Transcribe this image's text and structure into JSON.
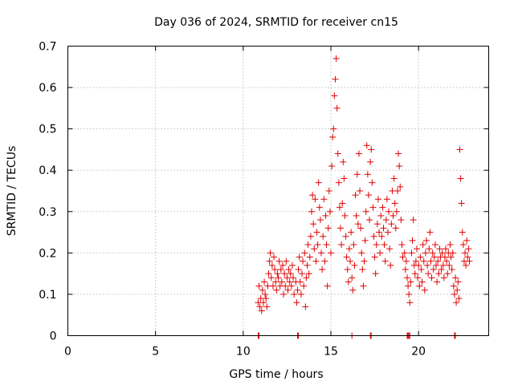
{
  "chart_data": {
    "type": "scatter",
    "title": "Day 036 of 2024, SRMTID for receiver cn15",
    "xlabel": "GPS time / hours",
    "ylabel": "SRMTID / TECUs",
    "xlim": [
      0,
      24
    ],
    "ylim": [
      0,
      0.7
    ],
    "x_ticks": [
      0,
      5,
      10,
      15,
      20
    ],
    "x_tick_labels": [
      "0",
      "5",
      "10",
      "15",
      "20"
    ],
    "y_ticks": [
      0,
      0.1,
      0.2,
      0.3,
      0.4,
      0.5,
      0.6,
      0.7
    ],
    "y_tick_labels": [
      "0",
      "0.1",
      "0.2",
      "0.3",
      "0.4",
      "0.5",
      "0.6",
      "0.7"
    ],
    "grid": true,
    "marker": "plus",
    "colors": {
      "series": "#e00000"
    },
    "series": [
      {
        "name": "SRMTID",
        "points": [
          [
            10.85,
            0.08
          ],
          [
            10.9,
            0.12
          ],
          [
            10.95,
            0.07
          ],
          [
            11.0,
            0.09
          ],
          [
            11.05,
            0.06
          ],
          [
            11.1,
            0.11
          ],
          [
            11.15,
            0.08
          ],
          [
            11.2,
            0.13
          ],
          [
            11.25,
            0.1
          ],
          [
            11.3,
            0.09
          ],
          [
            11.35,
            0.07
          ],
          [
            11.4,
            0.12
          ],
          [
            11.45,
            0.15
          ],
          [
            11.5,
            0.18
          ],
          [
            11.55,
            0.2
          ],
          [
            11.6,
            0.14
          ],
          [
            11.65,
            0.17
          ],
          [
            11.7,
            0.12
          ],
          [
            11.75,
            0.19
          ],
          [
            11.8,
            0.16
          ],
          [
            11.85,
            0.13
          ],
          [
            11.9,
            0.11
          ],
          [
            11.95,
            0.15
          ],
          [
            12.0,
            0.14
          ],
          [
            12.05,
            0.18
          ],
          [
            12.1,
            0.12
          ],
          [
            12.15,
            0.16
          ],
          [
            12.2,
            0.13
          ],
          [
            12.25,
            0.17
          ],
          [
            12.3,
            0.1
          ],
          [
            12.35,
            0.15
          ],
          [
            12.4,
            0.12
          ],
          [
            12.45,
            0.18
          ],
          [
            12.5,
            0.14
          ],
          [
            12.55,
            0.11
          ],
          [
            12.6,
            0.16
          ],
          [
            12.65,
            0.13
          ],
          [
            12.7,
            0.15
          ],
          [
            12.75,
            0.12
          ],
          [
            12.8,
            0.17
          ],
          [
            12.85,
            0.14
          ],
          [
            12.9,
            0.1
          ],
          [
            13.0,
            0.13
          ],
          [
            13.05,
            0.08
          ],
          [
            13.1,
            0.11
          ],
          [
            13.15,
            0.16
          ],
          [
            13.2,
            0.19
          ],
          [
            13.25,
            0.13
          ],
          [
            13.3,
            0.1
          ],
          [
            13.35,
            0.15
          ],
          [
            13.4,
            0.18
          ],
          [
            13.45,
            0.12
          ],
          [
            13.5,
            0.2
          ],
          [
            13.55,
            0.07
          ],
          [
            13.6,
            0.14
          ],
          [
            13.65,
            0.17
          ],
          [
            13.7,
            0.22
          ],
          [
            13.75,
            0.15
          ],
          [
            13.8,
            0.19
          ],
          [
            13.85,
            0.24
          ],
          [
            13.9,
            0.3
          ],
          [
            13.95,
            0.34
          ],
          [
            14.0,
            0.27
          ],
          [
            14.05,
            0.21
          ],
          [
            14.1,
            0.33
          ],
          [
            14.15,
            0.18
          ],
          [
            14.2,
            0.25
          ],
          [
            14.25,
            0.22
          ],
          [
            14.3,
            0.37
          ],
          [
            14.35,
            0.31
          ],
          [
            14.4,
            0.28
          ],
          [
            14.45,
            0.2
          ],
          [
            14.5,
            0.16
          ],
          [
            14.55,
            0.24
          ],
          [
            14.6,
            0.33
          ],
          [
            14.65,
            0.18
          ],
          [
            14.7,
            0.29
          ],
          [
            14.75,
            0.22
          ],
          [
            14.8,
            0.12
          ],
          [
            14.85,
            0.26
          ],
          [
            14.9,
            0.35
          ],
          [
            14.95,
            0.3
          ],
          [
            15.0,
            0.2
          ],
          [
            15.05,
            0.41
          ],
          [
            15.1,
            0.48
          ],
          [
            15.15,
            0.5
          ],
          [
            15.2,
            0.58
          ],
          [
            15.25,
            0.62
          ],
          [
            15.3,
            0.67
          ],
          [
            15.35,
            0.55
          ],
          [
            15.4,
            0.44
          ],
          [
            15.45,
            0.37
          ],
          [
            15.5,
            0.31
          ],
          [
            15.55,
            0.26
          ],
          [
            15.6,
            0.22
          ],
          [
            15.65,
            0.32
          ],
          [
            15.7,
            0.42
          ],
          [
            15.75,
            0.38
          ],
          [
            15.8,
            0.29
          ],
          [
            15.85,
            0.24
          ],
          [
            15.9,
            0.19
          ],
          [
            15.95,
            0.16
          ],
          [
            16.0,
            0.13
          ],
          [
            16.05,
            0.21
          ],
          [
            16.1,
            0.18
          ],
          [
            16.15,
            0.25
          ],
          [
            16.2,
            0.14
          ],
          [
            16.25,
            0.11
          ],
          [
            16.3,
            0.22
          ],
          [
            16.35,
            0.17
          ],
          [
            16.4,
            0.34
          ],
          [
            16.45,
            0.29
          ],
          [
            16.5,
            0.39
          ],
          [
            16.55,
            0.27
          ],
          [
            16.6,
            0.44
          ],
          [
            16.65,
            0.35
          ],
          [
            16.7,
            0.26
          ],
          [
            16.75,
            0.2
          ],
          [
            16.8,
            0.16
          ],
          [
            16.85,
            0.12
          ],
          [
            16.9,
            0.18
          ],
          [
            16.95,
            0.23
          ],
          [
            17.0,
            0.3
          ],
          [
            17.05,
            0.46
          ],
          [
            17.1,
            0.39
          ],
          [
            17.15,
            0.34
          ],
          [
            17.2,
            0.28
          ],
          [
            17.25,
            0.42
          ],
          [
            17.3,
            0.45
          ],
          [
            17.35,
            0.37
          ],
          [
            17.4,
            0.31
          ],
          [
            17.45,
            0.24
          ],
          [
            17.5,
            0.19
          ],
          [
            17.55,
            0.15
          ],
          [
            17.6,
            0.22
          ],
          [
            17.65,
            0.27
          ],
          [
            17.7,
            0.33
          ],
          [
            17.75,
            0.25
          ],
          [
            17.8,
            0.2
          ],
          [
            17.85,
            0.29
          ],
          [
            17.9,
            0.24
          ],
          [
            17.95,
            0.31
          ],
          [
            18.0,
            0.26
          ],
          [
            18.05,
            0.22
          ],
          [
            18.1,
            0.18
          ],
          [
            18.15,
            0.28
          ],
          [
            18.2,
            0.33
          ],
          [
            18.25,
            0.25
          ],
          [
            18.3,
            0.3
          ],
          [
            18.35,
            0.21
          ],
          [
            18.4,
            0.17
          ],
          [
            18.45,
            0.27
          ],
          [
            18.5,
            0.35
          ],
          [
            18.55,
            0.29
          ],
          [
            18.6,
            0.38
          ],
          [
            18.65,
            0.32
          ],
          [
            18.7,
            0.26
          ],
          [
            18.75,
            0.3
          ],
          [
            18.8,
            0.35
          ],
          [
            18.85,
            0.44
          ],
          [
            18.9,
            0.41
          ],
          [
            18.95,
            0.36
          ],
          [
            19.0,
            0.28
          ],
          [
            19.05,
            0.22
          ],
          [
            19.1,
            0.19
          ],
          [
            19.2,
            0.2
          ],
          [
            19.25,
            0.16
          ],
          [
            19.3,
            0.18
          ],
          [
            19.35,
            0.14
          ],
          [
            19.4,
            0.12
          ],
          [
            19.45,
            0.1
          ],
          [
            19.5,
            0.08
          ],
          [
            19.55,
            0.13
          ],
          [
            19.6,
            0.2
          ],
          [
            19.65,
            0.23
          ],
          [
            19.7,
            0.28
          ],
          [
            19.75,
            0.17
          ],
          [
            19.8,
            0.15
          ],
          [
            19.85,
            0.18
          ],
          [
            19.9,
            0.21
          ],
          [
            19.95,
            0.14
          ],
          [
            20.0,
            0.17
          ],
          [
            20.05,
            0.12
          ],
          [
            20.1,
            0.19
          ],
          [
            20.15,
            0.16
          ],
          [
            20.2,
            0.13
          ],
          [
            20.25,
            0.22
          ],
          [
            20.3,
            0.18
          ],
          [
            20.35,
            0.11
          ],
          [
            20.4,
            0.2
          ],
          [
            20.45,
            0.23
          ],
          [
            20.5,
            0.17
          ],
          [
            20.55,
            0.15
          ],
          [
            20.6,
            0.21
          ],
          [
            20.65,
            0.25
          ],
          [
            20.7,
            0.18
          ],
          [
            20.75,
            0.14
          ],
          [
            20.8,
            0.2
          ],
          [
            20.85,
            0.16
          ],
          [
            20.9,
            0.19
          ],
          [
            20.95,
            0.22
          ],
          [
            21.0,
            0.17
          ],
          [
            21.05,
            0.13
          ],
          [
            21.1,
            0.18
          ],
          [
            21.15,
            0.15
          ],
          [
            21.2,
            0.21
          ],
          [
            21.25,
            0.19
          ],
          [
            21.3,
            0.16
          ],
          [
            21.35,
            0.2
          ],
          [
            21.4,
            0.17
          ],
          [
            21.45,
            0.14
          ],
          [
            21.5,
            0.19
          ],
          [
            21.55,
            0.21
          ],
          [
            21.6,
            0.18
          ],
          [
            21.65,
            0.15
          ],
          [
            21.7,
            0.2
          ],
          [
            21.75,
            0.17
          ],
          [
            21.8,
            0.22
          ],
          [
            21.85,
            0.19
          ],
          [
            21.9,
            0.16
          ],
          [
            21.95,
            0.2
          ],
          [
            22.0,
            0.12
          ],
          [
            22.05,
            0.1
          ],
          [
            22.1,
            0.14
          ],
          [
            22.15,
            0.08
          ],
          [
            22.2,
            0.11
          ],
          [
            22.25,
            0.13
          ],
          [
            22.3,
            0.09
          ],
          [
            22.35,
            0.45
          ],
          [
            22.4,
            0.38
          ],
          [
            22.45,
            0.32
          ],
          [
            22.5,
            0.25
          ],
          [
            22.55,
            0.22
          ],
          [
            22.6,
            0.18
          ],
          [
            22.65,
            0.2
          ],
          [
            22.7,
            0.17
          ],
          [
            22.75,
            0.23
          ],
          [
            22.8,
            0.19
          ],
          [
            22.85,
            0.21
          ],
          [
            22.9,
            0.18
          ]
        ],
        "zero_points": [
          10.85,
          10.9,
          13.1,
          13.15,
          16.2,
          17.25,
          17.3,
          19.35,
          19.4,
          19.45,
          19.5,
          22.05,
          22.1
        ]
      }
    ]
  }
}
